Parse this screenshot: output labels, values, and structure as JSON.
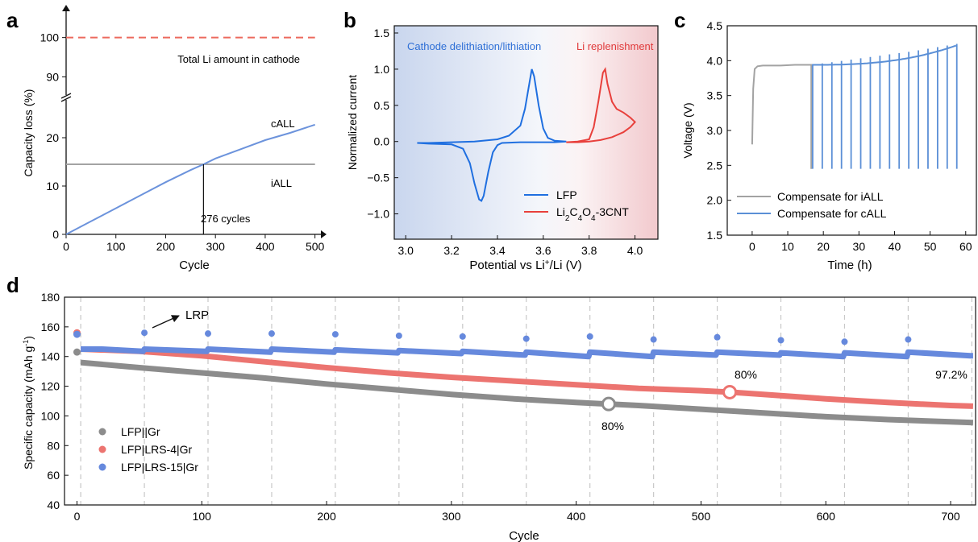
{
  "chart_data": [
    {
      "panel": "a",
      "type": "line",
      "title": "",
      "xlabel": "Cycle",
      "ylabel": "Capacity loss (%)",
      "xlim": [
        0,
        520
      ],
      "ylim_lower": [
        0,
        26
      ],
      "ylim_upper": [
        86,
        103
      ],
      "x_ticks": [
        0,
        100,
        200,
        300,
        400,
        500
      ],
      "y_ticks_lower": [
        0,
        10,
        20
      ],
      "y_ticks_upper": [
        90,
        100
      ],
      "series": [
        {
          "name": "cALL",
          "x": [
            0,
            50,
            100,
            150,
            200,
            250,
            276,
            300,
            350,
            400,
            450,
            500
          ],
          "values": [
            0,
            2.7,
            5.4,
            8.1,
            10.8,
            13.3,
            14.5,
            15.7,
            17.6,
            19.5,
            21.0,
            22.7
          ],
          "color": "#6c93dc"
        },
        {
          "name": "iALL",
          "x": [
            0,
            500
          ],
          "values": [
            14.5,
            14.5
          ],
          "color": "#a3a3a3"
        },
        {
          "name": "",
          "x": [
            0,
            500
          ],
          "values": [
            100,
            100
          ],
          "color": "#ec6a5e",
          "dash": true
        }
      ],
      "annotations": {
        "dashed_label": "Total Li amount in cathode",
        "callout": "276 cycles",
        "callout_x": 276,
        "call_label": "cALL",
        "iall_label": "iALL"
      }
    },
    {
      "panel": "b",
      "type": "line",
      "title": "",
      "xlabel": "Potential vs Li⁺/Li (V)",
      "ylabel": "Normalized current",
      "xlim": [
        2.95,
        4.1
      ],
      "ylim": [
        -1.35,
        1.6
      ],
      "x_ticks": [
        3.0,
        3.2,
        3.4,
        3.6,
        3.8,
        4.0
      ],
      "y_ticks": [
        -1.0,
        -0.5,
        0.0,
        0.5,
        1.0,
        1.5
      ],
      "x_ticks_labels": [
        "3.0",
        "3.2",
        "3.4",
        "3.6",
        "3.8",
        "4.0"
      ],
      "y_ticks_labels": [
        "−1.0",
        "−0.5",
        "0.0",
        "0.5",
        "1.0",
        "1.5"
      ],
      "region_labels": {
        "left": "Cathode delithiation/lithiation",
        "right": "Li replenishment"
      },
      "series": [
        {
          "name": "LFP",
          "color": "#1f6fe0",
          "x": [
            3.05,
            3.1,
            3.2,
            3.3,
            3.4,
            3.45,
            3.5,
            3.52,
            3.54,
            3.55,
            3.56,
            3.58,
            3.6,
            3.62,
            3.65,
            3.7,
            3.65,
            3.6,
            3.5,
            3.42,
            3.4,
            3.38,
            3.36,
            3.34,
            3.33,
            3.32,
            3.3,
            3.28,
            3.25,
            3.2,
            3.1,
            3.05
          ],
          "values": [
            -0.02,
            -0.02,
            -0.01,
            0.0,
            0.03,
            0.08,
            0.22,
            0.45,
            0.82,
            1.0,
            0.9,
            0.5,
            0.18,
            0.05,
            0.01,
            0.0,
            -0.01,
            -0.01,
            -0.01,
            -0.02,
            -0.05,
            -0.15,
            -0.42,
            -0.75,
            -0.82,
            -0.8,
            -0.58,
            -0.3,
            -0.1,
            -0.04,
            -0.03,
            -0.02
          ]
        },
        {
          "name": "Li₂C₄O₄-3CNT",
          "color": "#e8403c",
          "x": [
            3.7,
            3.75,
            3.8,
            3.82,
            3.84,
            3.86,
            3.87,
            3.88,
            3.9,
            3.92,
            3.95,
            3.98,
            4.0,
            3.98,
            3.95,
            3.9,
            3.85,
            3.8,
            3.75,
            3.7
          ],
          "values": [
            -0.01,
            0.0,
            0.03,
            0.2,
            0.55,
            0.95,
            1.0,
            0.8,
            0.55,
            0.45,
            0.4,
            0.33,
            0.27,
            0.2,
            0.13,
            0.06,
            0.02,
            0.0,
            -0.01,
            -0.01
          ]
        }
      ]
    },
    {
      "panel": "c",
      "type": "line",
      "title": "",
      "xlabel": "Time (h)",
      "ylabel": "Voltage (V)",
      "xlim": [
        -7,
        63
      ],
      "ylim": [
        1.5,
        4.5
      ],
      "x_ticks": [
        0,
        10,
        20,
        30,
        40,
        50,
        60
      ],
      "y_ticks": [
        1.5,
        2.0,
        2.5,
        3.0,
        3.5,
        4.0,
        4.5
      ],
      "y_ticks_labels": [
        "1.5",
        "2.0",
        "2.5",
        "3.0",
        "3.5",
        "4.0",
        "4.5"
      ],
      "series": [
        {
          "name": "Compensate for iALL",
          "color": "#a3a3a3",
          "x": [
            0,
            0.3,
            0.7,
            1.5,
            3,
            8,
            12,
            16.5,
            16.6,
            16.6
          ],
          "values": [
            2.8,
            3.6,
            3.88,
            3.92,
            3.93,
            3.93,
            3.94,
            3.94,
            3.94,
            2.45
          ]
        },
        {
          "name": "Compensate for cALL",
          "color": "#5b8fd6",
          "x": [
            16.8,
            57.5
          ],
          "values": [
            3.94,
            4.22
          ],
          "spike_times": [
            17,
            19.7,
            22.4,
            25.1,
            27.8,
            30.5,
            33.2,
            35.9,
            38.6,
            41.3,
            44.0,
            46.7,
            49.4,
            52.1,
            54.8,
            57.5
          ],
          "spike_min": 2.45
        }
      ]
    },
    {
      "panel": "d",
      "type": "scatter",
      "title": "",
      "xlabel": "Cycle",
      "ylabel": "Specific capacity (mAh g⁻¹)",
      "xlim": [
        -10,
        720
      ],
      "ylim": [
        40,
        180
      ],
      "x_ticks": [
        0,
        100,
        200,
        300,
        400,
        500,
        600,
        700
      ],
      "y_ticks": [
        40,
        60,
        80,
        100,
        120,
        140,
        160,
        180
      ],
      "cycle_markers": [
        3,
        54,
        105,
        156,
        207,
        258,
        309,
        360,
        411,
        462,
        513,
        564,
        615,
        666,
        717
      ],
      "series": [
        {
          "name": "LFP||Gr",
          "color": "#8c8c8c",
          "x": [
            0,
            3,
            50,
            100,
            150,
            200,
            250,
            300,
            350,
            400,
            426,
            450,
            500,
            550,
            600,
            650,
            700,
            718
          ],
          "values": [
            143,
            136,
            132.5,
            129,
            125.5,
            121.5,
            118,
            114.5,
            111.5,
            109,
            108,
            107,
            104.5,
            102,
            99.5,
            97.5,
            96,
            95.5
          ]
        },
        {
          "name": "LFP|LRS-4|Gr",
          "color": "#ec7470",
          "x": [
            0,
            3,
            50,
            100,
            150,
            200,
            250,
            300,
            350,
            400,
            450,
            500,
            523,
            550,
            600,
            650,
            700,
            718
          ],
          "values": [
            156,
            145,
            143.5,
            140.5,
            136.5,
            132.5,
            129,
            126,
            123.5,
            121,
            118.5,
            117,
            116,
            114.5,
            111.5,
            109,
            107,
            106.5
          ]
        },
        {
          "name": "LFP|LRS-15|Gr",
          "color": "#6689dd",
          "x": [
            0,
            3,
            20,
            53,
            54,
            104,
            105,
            155,
            156,
            206,
            207,
            257,
            258,
            308,
            309,
            359,
            360,
            410,
            411,
            461,
            462,
            512,
            513,
            563,
            564,
            614,
            615,
            665,
            666,
            716,
            718
          ],
          "values": [
            155,
            145,
            145,
            143.5,
            145,
            143.5,
            145,
            143,
            145,
            143,
            144.5,
            142.5,
            144,
            142,
            143.5,
            141,
            143,
            140,
            143,
            140,
            143,
            141,
            143,
            141,
            142.5,
            140,
            142.5,
            140,
            143,
            140.5,
            140.5
          ],
          "refill_points": {
            "x": [
              54,
              105,
              156,
              207,
              258,
              309,
              360,
              411,
              462,
              513,
              564,
              615,
              666
            ],
            "values": [
              156,
              155.5,
              155.5,
              155,
              154,
              153.5,
              152,
              153.5,
              151.5,
              153,
              151,
              150,
              151.5
            ]
          }
        }
      ],
      "legend_placement": "bottom-left",
      "annotations": {
        "arrow_label": "LRP",
        "pct_gr": "80%",
        "pct_lrs4": "80%",
        "pct_lrs15": "97.2%",
        "open_marker_gr": [
          426,
          108
        ],
        "open_marker_lrs4": [
          523,
          116
        ]
      }
    }
  ],
  "panel_labels": [
    "a",
    "b",
    "c",
    "d"
  ]
}
